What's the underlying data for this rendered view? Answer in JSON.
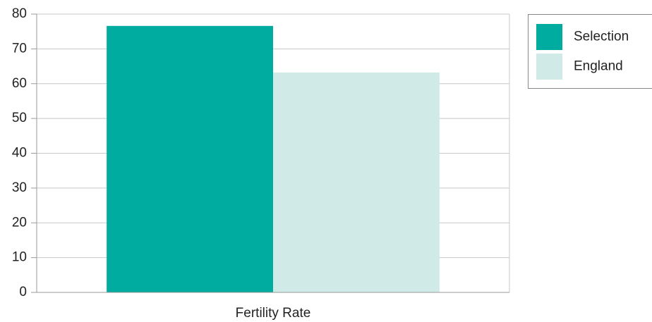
{
  "chart_data": {
    "type": "bar",
    "categories": [
      "Fertility Rate"
    ],
    "series": [
      {
        "name": "Selection",
        "color": "#00ac9f",
        "values": [
          76.6
        ]
      },
      {
        "name": "England",
        "color": "#d0ebe7",
        "values": [
          63.2
        ]
      }
    ],
    "ylim": [
      0,
      80
    ],
    "yticks": [
      0,
      10,
      20,
      30,
      40,
      50,
      60,
      70,
      80
    ],
    "grid": true,
    "legend": "right"
  }
}
